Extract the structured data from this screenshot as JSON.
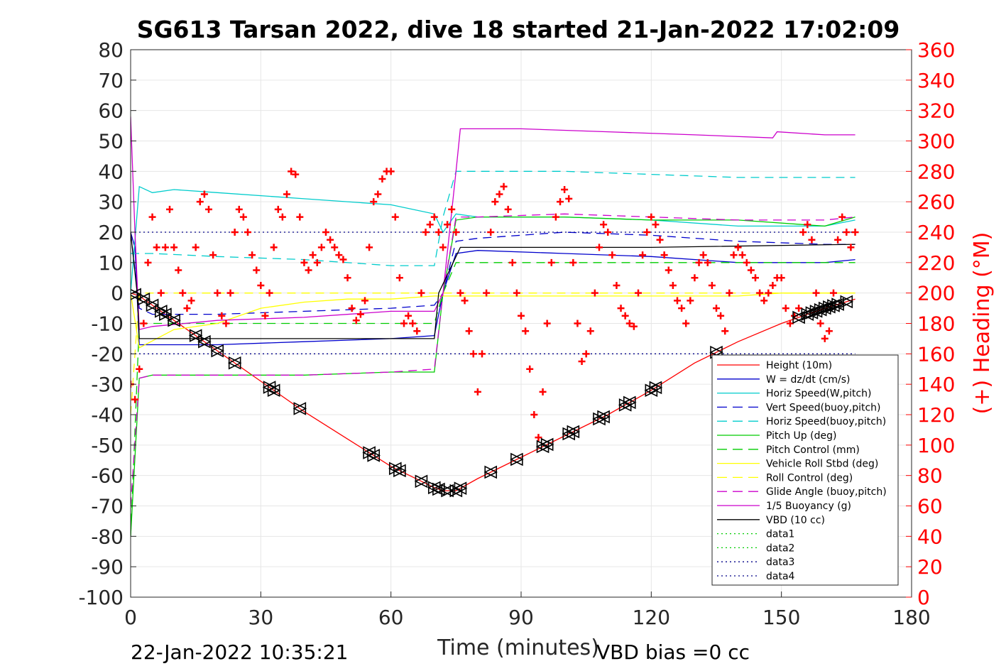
{
  "chart_data": {
    "type": "line",
    "title": "SG613 Tarsan 2022, dive 18 started 21-Jan-2022 17:02:09",
    "xlabel": "Time (minutes)",
    "ylabel": "",
    "y2label": "(+) Heading (°M)",
    "xlim": [
      0,
      180
    ],
    "ylim": [
      -100,
      80
    ],
    "y2lim": [
      0,
      360
    ],
    "xticks": [
      "0",
      "30",
      "60",
      "90",
      "120",
      "150",
      "180"
    ],
    "yticks": [
      "80",
      "70",
      "60",
      "50",
      "40",
      "30",
      "20",
      "10",
      "0",
      "-10",
      "-20",
      "-30",
      "-40",
      "-50",
      "-60",
      "-70",
      "-80",
      "-90",
      "-100"
    ],
    "y2ticks": [
      "360",
      "340",
      "320",
      "300",
      "280",
      "260",
      "240",
      "220",
      "200",
      "180",
      "160",
      "140",
      "120",
      "100",
      "80",
      "60",
      "40",
      "20",
      "0"
    ],
    "grid": true,
    "legend_position": "bottom-right",
    "footer_left": "22-Jan-2022 10:35:21",
    "footer_right": "VBD bias =0 cc",
    "series": [
      {
        "name": "Height (10m)",
        "color": "#ff0000",
        "style": "solid",
        "x": [
          0,
          2,
          10,
          20,
          30,
          40,
          50,
          60,
          70,
          72,
          75,
          80,
          90,
          100,
          110,
          120,
          130,
          140,
          150,
          160,
          167
        ],
        "y": [
          0,
          -1,
          -9,
          -19,
          -29,
          -39,
          -48,
          -57,
          -64,
          -65,
          -65,
          -61,
          -54,
          -47,
          -40,
          -32,
          -23,
          -16,
          -10,
          -5,
          -2
        ]
      },
      {
        "name": "W = dz/dt (cm/s)",
        "color": "#0000cc",
        "style": "solid",
        "x": [
          0,
          1,
          2,
          5,
          20,
          40,
          60,
          70,
          72,
          75,
          80,
          100,
          120,
          140,
          160,
          167
        ],
        "y": [
          20,
          15,
          -17,
          -17,
          -17,
          -16,
          -15,
          -14,
          0,
          13,
          14,
          13,
          12,
          10,
          10,
          11
        ]
      },
      {
        "name": "Horiz Speed(W,pitch)",
        "color": "#00cccc",
        "style": "solid",
        "x": [
          0,
          2,
          5,
          10,
          20,
          40,
          60,
          70,
          72,
          75,
          80,
          100,
          120,
          140,
          160,
          167
        ],
        "y": [
          0,
          35,
          33,
          34,
          33,
          31,
          29,
          26,
          20,
          26,
          25,
          25,
          24,
          22,
          22,
          24
        ]
      },
      {
        "name": "Vert Speed(buoy,pitch)",
        "color": "#0000cc",
        "style": "dashed",
        "x": [
          0,
          2,
          5,
          20,
          40,
          60,
          70,
          72,
          75,
          80,
          100,
          120,
          140,
          160,
          167
        ],
        "y": [
          20,
          -5,
          -7,
          -7,
          -6,
          -5,
          -4,
          0,
          17,
          18,
          20,
          19,
          17,
          16,
          16
        ]
      },
      {
        "name": "Horiz Speed(buoy,pitch)",
        "color": "#00cccc",
        "style": "dashed",
        "x": [
          0,
          2,
          5,
          20,
          40,
          60,
          70,
          72,
          75,
          80,
          100,
          120,
          140,
          160,
          167
        ],
        "y": [
          13,
          13,
          13,
          12,
          11,
          9,
          9,
          25,
          40,
          40,
          40,
          39,
          38,
          38,
          38
        ]
      },
      {
        "name": "Pitch Up (deg)",
        "color": "#00cc00",
        "style": "solid",
        "x": [
          0,
          2,
          5,
          20,
          40,
          60,
          70,
          72,
          75,
          80,
          100,
          120,
          140,
          160,
          167
        ],
        "y": [
          -80,
          -28,
          -27,
          -27,
          -27,
          -26,
          -26,
          0,
          24,
          25,
          25,
          24,
          24,
          22,
          25
        ]
      },
      {
        "name": "Pitch Control (mm)",
        "color": "#00cc00",
        "style": "dashed",
        "x": [
          0,
          2,
          5,
          20,
          40,
          60,
          70,
          72,
          75,
          80,
          100,
          120,
          140,
          160,
          167
        ],
        "y": [
          -80,
          -10,
          -10,
          -10,
          -10,
          -10,
          -10,
          0,
          10,
          10,
          10,
          10,
          10,
          10,
          10
        ]
      },
      {
        "name": "Vehicle Roll Stbd (deg)",
        "color": "#ffff00",
        "style": "solid",
        "x": [
          0,
          2,
          10,
          20,
          30,
          40,
          50,
          60,
          70,
          75,
          80,
          90,
          100,
          110,
          120,
          130,
          140,
          150,
          160,
          167
        ],
        "y": [
          0,
          -18,
          -12,
          -10,
          -5,
          -3,
          -2,
          -2,
          -1,
          -1,
          -1,
          -1,
          -1,
          -1,
          -1,
          -1,
          -1,
          0,
          0,
          0
        ]
      },
      {
        "name": "Roll Control (deg)",
        "color": "#ffff00",
        "style": "dashed",
        "x": [
          0,
          2,
          20,
          40,
          60,
          70,
          75,
          80,
          100,
          120,
          140,
          160,
          167
        ],
        "y": [
          -40,
          0,
          0,
          0,
          0,
          0,
          0,
          0,
          0,
          0,
          0,
          0,
          0
        ]
      },
      {
        "name": "Glide Angle (buoy,pitch)",
        "color": "#cc00cc",
        "style": "dashed",
        "x": [
          0,
          2,
          5,
          20,
          40,
          60,
          70,
          72,
          75,
          80,
          100,
          120,
          140,
          160,
          167
        ],
        "y": [
          -70,
          -28,
          -27,
          -27,
          -27,
          -26,
          -25,
          0,
          25,
          25,
          26,
          25,
          24,
          24,
          25
        ]
      },
      {
        "name": "1/5 Buoyancy (g)",
        "color": "#cc00cc",
        "style": "solid",
        "x": [
          0,
          1,
          2,
          5,
          20,
          40,
          60,
          70,
          72,
          75,
          76,
          90,
          110,
          130,
          148,
          149,
          160,
          167
        ],
        "y": [
          58,
          20,
          -12,
          -11,
          -9,
          -8,
          -6,
          -6,
          0,
          40,
          54,
          54,
          53,
          52,
          51,
          53,
          52,
          52
        ]
      },
      {
        "name": "VBD (10 cc)",
        "color": "#000000",
        "style": "solid",
        "x": [
          0,
          1.5,
          2,
          70,
          71,
          75,
          76,
          120,
          167
        ],
        "y": [
          20,
          0,
          -15,
          -15,
          0,
          12,
          15,
          15,
          16
        ]
      },
      {
        "name": "data1",
        "color": "#00cc00",
        "style": "dotted",
        "x": [],
        "y": []
      },
      {
        "name": "data2",
        "color": "#00cc00",
        "style": "dotted",
        "x": [],
        "y": []
      },
      {
        "name": "data3",
        "color": "#000088",
        "style": "dotted",
        "x": [
          0,
          167
        ],
        "y": [
          20,
          20
        ]
      },
      {
        "name": "data4",
        "color": "#000088",
        "style": "dotted",
        "x": [
          0,
          167
        ],
        "y": [
          -20,
          -20
        ]
      }
    ],
    "heading": {
      "axis": "right",
      "marker": "+",
      "color": "#ff0000",
      "x": [
        0,
        1,
        2,
        3,
        4,
        5,
        6,
        7,
        8,
        9,
        10,
        11,
        12,
        13,
        14,
        15,
        16,
        17,
        18,
        19,
        20,
        21,
        22,
        23,
        24,
        25,
        26,
        27,
        28,
        29,
        30,
        31,
        32,
        33,
        34,
        35,
        36,
        37,
        38,
        39,
        40,
        41,
        42,
        43,
        44,
        45,
        46,
        47,
        48,
        49,
        50,
        51,
        52,
        53,
        54,
        55,
        56,
        57,
        58,
        59,
        60,
        61,
        62,
        63,
        64,
        65,
        66,
        67,
        68,
        69,
        70,
        71,
        72,
        73,
        74,
        75,
        76,
        77,
        78,
        79,
        80,
        81,
        82,
        83,
        84,
        85,
        86,
        87,
        88,
        89,
        90,
        91,
        92,
        93,
        94,
        95,
        96,
        97,
        98,
        99,
        100,
        101,
        102,
        103,
        104,
        105,
        106,
        107,
        108,
        109,
        110,
        111,
        112,
        113,
        114,
        115,
        116,
        117,
        118,
        119,
        120,
        121,
        122,
        123,
        124,
        125,
        126,
        127,
        128,
        129,
        130,
        131,
        132,
        133,
        134,
        135,
        136,
        137,
        138,
        139,
        140,
        141,
        142,
        143,
        144,
        145,
        146,
        147,
        148,
        149,
        150,
        151,
        152,
        153,
        154,
        155,
        156,
        157,
        158,
        159,
        160,
        161,
        162,
        163,
        164,
        165,
        166,
        167
      ],
      "y": [
        140,
        130,
        150,
        180,
        220,
        250,
        230,
        200,
        230,
        255,
        230,
        215,
        200,
        190,
        195,
        230,
        260,
        265,
        255,
        225,
        200,
        185,
        180,
        200,
        240,
        255,
        250,
        240,
        225,
        215,
        205,
        185,
        200,
        230,
        255,
        250,
        265,
        280,
        278,
        250,
        220,
        215,
        225,
        220,
        230,
        240,
        235,
        230,
        225,
        222,
        210,
        190,
        182,
        186,
        195,
        230,
        260,
        265,
        275,
        280,
        280,
        250,
        210,
        180,
        185,
        180,
        175,
        200,
        240,
        245,
        250,
        240,
        230,
        245,
        255,
        240,
        200,
        195,
        175,
        160,
        135,
        160,
        200,
        240,
        260,
        265,
        270,
        255,
        220,
        200,
        185,
        175,
        150,
        120,
        105,
        135,
        180,
        220,
        250,
        260,
        268,
        262,
        220,
        180,
        155,
        160,
        175,
        200,
        230,
        245,
        240,
        225,
        205,
        190,
        185,
        180,
        178,
        200,
        225,
        240,
        250,
        245,
        235,
        225,
        215,
        205,
        195,
        190,
        180,
        195,
        210,
        220,
        225,
        220,
        205,
        190,
        185,
        175,
        200,
        225,
        230,
        225,
        220,
        215,
        210,
        200,
        195,
        200,
        205,
        210,
        210,
        190,
        180,
        185,
        190,
        240,
        245,
        235,
        200,
        180,
        170,
        175,
        200,
        235,
        250,
        240,
        230,
        240
      ]
    },
    "markers": {
      "x": [
        1,
        3,
        5,
        7,
        8,
        10,
        15,
        17,
        20,
        24,
        32,
        33,
        39,
        55,
        56,
        61,
        62,
        67,
        70,
        71,
        73,
        75,
        76,
        83,
        89,
        95,
        96,
        101,
        102,
        108,
        109,
        114,
        115,
        120,
        121,
        135,
        154,
        156,
        157,
        158,
        159,
        160,
        161,
        162,
        163,
        165
      ]
    }
  }
}
